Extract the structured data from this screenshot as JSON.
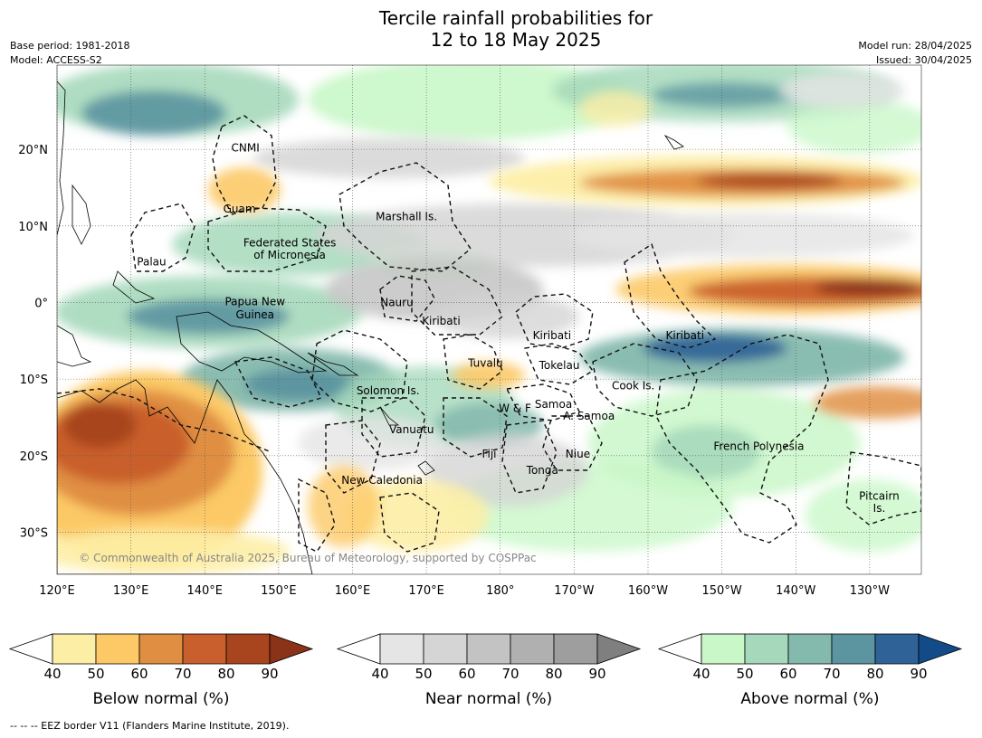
{
  "title": {
    "line1": "Tercile rainfall probabilities for",
    "line2": "12 to 18 May 2025"
  },
  "meta": {
    "base_period": "Base period: 1981-2018",
    "model": "Model: ACCESS-S2",
    "model_run": "Model run: 28/04/2025",
    "issued": "Issued: 30/04/2025"
  },
  "map": {
    "lon_range": [
      120,
      237
    ],
    "lat_range": [
      -35.5,
      31
    ],
    "lat_ticks": [
      {
        "value": 20,
        "label": "20°N"
      },
      {
        "value": 10,
        "label": "10°N"
      },
      {
        "value": 0,
        "label": "0°"
      },
      {
        "value": -10,
        "label": "10°S"
      },
      {
        "value": -20,
        "label": "20°S"
      },
      {
        "value": -30,
        "label": "30°S"
      }
    ],
    "lon_ticks": [
      {
        "value": 120,
        "label": "120°E"
      },
      {
        "value": 130,
        "label": "130°E"
      },
      {
        "value": 140,
        "label": "140°E"
      },
      {
        "value": 150,
        "label": "150°E"
      },
      {
        "value": 160,
        "label": "160°E"
      },
      {
        "value": 170,
        "label": "170°E"
      },
      {
        "value": 180,
        "label": "180°"
      },
      {
        "value": 190,
        "label": "170°W"
      },
      {
        "value": 200,
        "label": "160°W"
      },
      {
        "value": 210,
        "label": "150°W"
      },
      {
        "value": 220,
        "label": "140°W"
      },
      {
        "value": 230,
        "label": "130°W"
      }
    ],
    "region_labels": [
      {
        "text": "CNMI",
        "lon": 145.5,
        "lat": 20.2
      },
      {
        "text": "Guam",
        "lon": 144.7,
        "lat": 12.2
      },
      {
        "text": "Marshall Is.",
        "lon": 167.3,
        "lat": 11.2
      },
      {
        "text": "Palau",
        "lon": 132.8,
        "lat": 5.3
      },
      {
        "text": "Federated States",
        "lon": 151.5,
        "lat": 7.8
      },
      {
        "text": "of Micronesia",
        "lon": 151.5,
        "lat": 6.2
      },
      {
        "text": "Papua New",
        "lon": 146.8,
        "lat": 0.1
      },
      {
        "text": "Guinea",
        "lon": 146.8,
        "lat": -1.6
      },
      {
        "text": "Nauru",
        "lon": 166.0,
        "lat": 0.0
      },
      {
        "text": "Kiribati",
        "lon": 172.0,
        "lat": -2.4
      },
      {
        "text": "Kiribati",
        "lon": 187.0,
        "lat": -4.3
      },
      {
        "text": "Kiribati",
        "lon": 205.0,
        "lat": -4.3
      },
      {
        "text": "Tuvalu",
        "lon": 178.0,
        "lat": -7.9
      },
      {
        "text": "Tokelau",
        "lon": 188.0,
        "lat": -8.2
      },
      {
        "text": "Solomon Is.",
        "lon": 164.8,
        "lat": -11.5
      },
      {
        "text": "Cook Is.",
        "lon": 198.0,
        "lat": -10.9
      },
      {
        "text": "W & F",
        "lon": 182.0,
        "lat": -13.8
      },
      {
        "text": "Samoa",
        "lon": 187.2,
        "lat": -13.3
      },
      {
        "text": "A. Samoa",
        "lon": 192.0,
        "lat": -14.8
      },
      {
        "text": "Vanuatu",
        "lon": 168.0,
        "lat": -16.6
      },
      {
        "text": "French Polynesia",
        "lon": 215.0,
        "lat": -18.8
      },
      {
        "text": "Fiji",
        "lon": 178.5,
        "lat": -19.8
      },
      {
        "text": "Niue",
        "lon": 190.5,
        "lat": -19.8
      },
      {
        "text": "Tonga",
        "lon": 185.7,
        "lat": -21.9
      },
      {
        "text": "New Caledonia",
        "lon": 164.0,
        "lat": -23.2
      },
      {
        "text": "Pitcairn",
        "lon": 231.3,
        "lat": -25.3
      },
      {
        "text": "Is.",
        "lon": 231.3,
        "lat": -26.9
      }
    ],
    "copyright": "© Commonwealth of Australia 2025, Bureau of Meteorology, supported by COSPPac"
  },
  "colorbars": [
    {
      "label": "Below normal (%)",
      "ticks": [
        "40",
        "50",
        "60",
        "70",
        "80",
        "90"
      ],
      "colors": [
        "#ffffff",
        "#fdeea6",
        "#fcc966",
        "#e08f42",
        "#c95f2c",
        "#a8451f",
        "#8a3318"
      ]
    },
    {
      "label": "Near normal (%)",
      "ticks": [
        "40",
        "50",
        "60",
        "70",
        "80",
        "90"
      ],
      "colors": [
        "#ffffff",
        "#e5e5e5",
        "#d5d5d5",
        "#c3c3c3",
        "#b0b0b0",
        "#9e9e9e",
        "#7f7f7f"
      ]
    },
    {
      "label": "Above normal (%)",
      "ticks": [
        "40",
        "50",
        "60",
        "70",
        "80",
        "90"
      ],
      "colors": [
        "#ffffff",
        "#c9f7c8",
        "#a6d9bb",
        "#84b9ad",
        "#5c95a0",
        "#2f6297",
        "#134b88"
      ]
    }
  ],
  "footnote": "--  --  -- EEZ border V11 (Flanders Marine Institute, 2019)."
}
